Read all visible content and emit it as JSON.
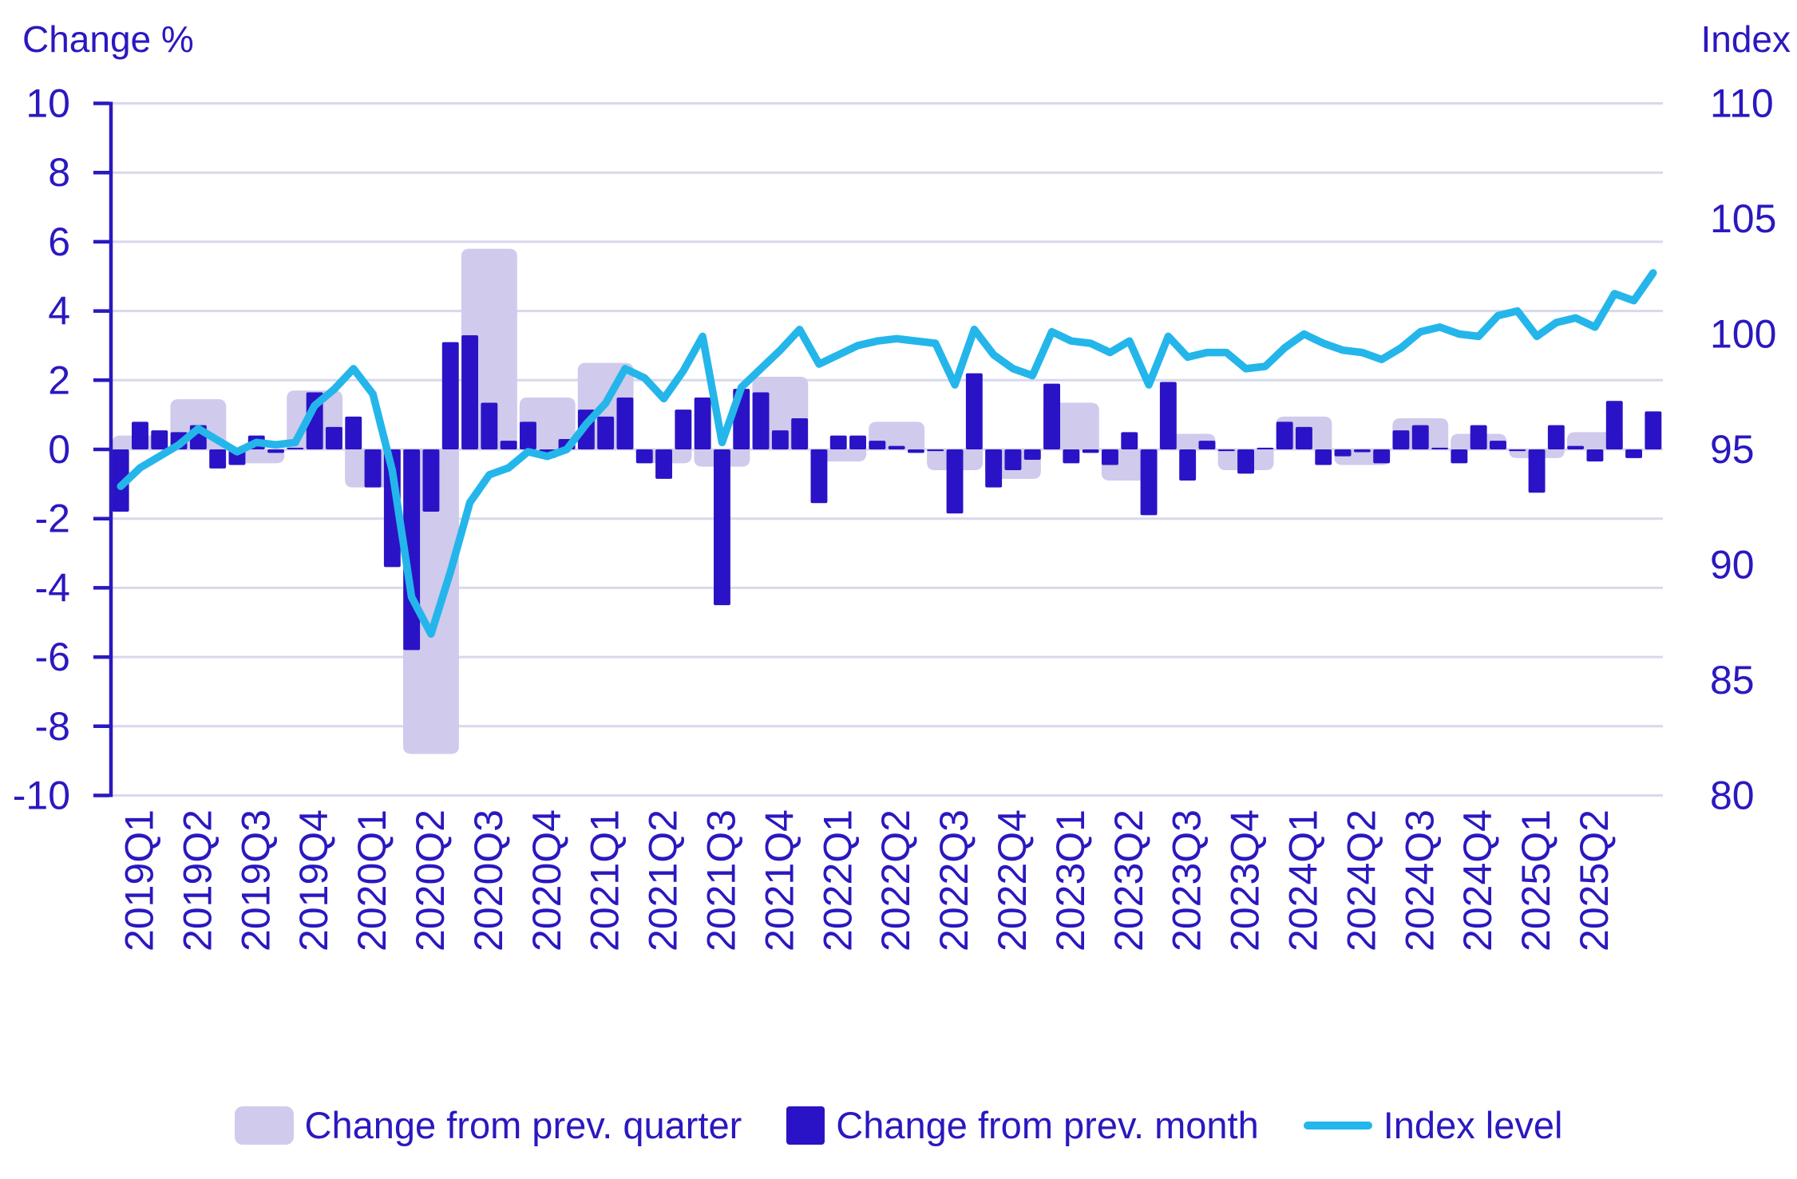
{
  "titles": {
    "left_axis_title": "Change %",
    "right_axis_title": "Index"
  },
  "legend": {
    "quarter_label": "Change from prev. quarter",
    "month_label": "Change from prev. month",
    "index_label": "Index level"
  },
  "colors": {
    "quarter_bar": "#d0caec",
    "month_bar": "#2a13c6",
    "index_line": "#24b6ea",
    "text": "#2a18c0",
    "grid": "#d8d8ee"
  },
  "chart_data": {
    "type": "combo",
    "left_axis": {
      "title": "Change %",
      "min": -10,
      "max": 10,
      "tick_labels": [
        "10",
        "8",
        "6",
        "4",
        "2",
        "0",
        "-2",
        "-4",
        "-6",
        "-8",
        "-10"
      ],
      "tick_values": [
        10,
        8,
        6,
        4,
        2,
        0,
        -2,
        -4,
        -6,
        -8,
        -10
      ],
      "grid": true
    },
    "right_axis": {
      "title": "Index",
      "min": 80,
      "max": 110,
      "tick_labels": [
        "110",
        "105",
        "100",
        "95",
        "90",
        "85",
        "80"
      ],
      "tick_values": [
        110,
        105,
        100,
        95,
        90,
        85,
        80
      ]
    },
    "x_labels": [
      "2019Q1",
      "2019Q2",
      "2019Q3",
      "2019Q4",
      "2020Q1",
      "2020Q2",
      "2020Q3",
      "2020Q4",
      "2021Q1",
      "2021Q2",
      "2021Q3",
      "2021Q4",
      "2022Q1",
      "2022Q2",
      "2022Q3",
      "2022Q4",
      "2023Q1",
      "2023Q2",
      "2023Q3",
      "2023Q4",
      "2024Q1",
      "2024Q2",
      "2024Q3",
      "2024Q4",
      "2025Q1",
      "2025Q2"
    ],
    "months_per_quarter": 3,
    "legend_position": "bottom",
    "series": [
      {
        "name": "Change from prev. quarter",
        "type": "bar",
        "period": "quarter",
        "axis": "left",
        "values": [
          0.4,
          1.45,
          -0.4,
          1.7,
          -1.1,
          -8.8,
          5.8,
          1.5,
          2.5,
          -0.4,
          -0.5,
          2.1,
          -0.35,
          0.8,
          -0.6,
          -0.85,
          1.35,
          -0.9,
          0.45,
          -0.6,
          0.95,
          -0.45,
          0.9,
          0.45,
          -0.25,
          0.5
        ]
      },
      {
        "name": "Change from prev. month",
        "type": "bar",
        "period": "month",
        "axis": "left",
        "values": [
          -1.8,
          0.8,
          0.55,
          0.5,
          0.7,
          -0.55,
          -0.45,
          0.4,
          -0.1,
          0.05,
          1.65,
          0.65,
          0.95,
          -1.1,
          -3.4,
          -5.8,
          -1.8,
          3.1,
          3.3,
          1.35,
          0.25,
          0.8,
          -0.25,
          0.3,
          1.15,
          0.95,
          1.5,
          -0.4,
          -0.85,
          1.15,
          1.5,
          -4.5,
          1.75,
          1.65,
          0.55,
          0.9,
          -1.55,
          0.4,
          0.4,
          0.25,
          0.1,
          -0.1,
          -0.05,
          -1.85,
          2.2,
          -1.1,
          -0.6,
          -0.3,
          1.9,
          -0.4,
          -0.1,
          -0.45,
          0.5,
          -1.9,
          1.95,
          -0.9,
          0.25,
          -0.05,
          -0.7,
          0.05,
          0.8,
          0.65,
          -0.45,
          -0.2,
          -0.08,
          -0.4,
          0.55,
          0.7,
          0.05,
          -0.4,
          0.7,
          0.25,
          -0.05,
          -1.25,
          0.7,
          0.1,
          -0.35,
          1.4,
          -0.25,
          1.1
        ]
      },
      {
        "name": "Index level",
        "type": "line",
        "period": "month",
        "axis": "right",
        "values": [
          93.4,
          94.2,
          94.7,
          95.2,
          95.9,
          95.4,
          94.9,
          95.3,
          95.2,
          95.3,
          96.9,
          97.6,
          98.5,
          97.4,
          94.1,
          88.6,
          87.0,
          89.7,
          92.7,
          93.9,
          94.2,
          94.9,
          94.7,
          95.0,
          96.1,
          97.0,
          98.5,
          98.1,
          97.2,
          98.4,
          99.9,
          95.3,
          97.7,
          98.5,
          99.3,
          100.2,
          98.7,
          99.1,
          99.5,
          99.7,
          99.8,
          99.7,
          99.6,
          97.8,
          100.2,
          99.1,
          98.5,
          98.2,
          100.1,
          99.7,
          99.6,
          99.2,
          99.7,
          97.8,
          99.9,
          99.0,
          99.2,
          99.2,
          98.5,
          98.6,
          99.4,
          100.0,
          99.6,
          99.3,
          99.2,
          98.9,
          99.4,
          100.1,
          100.3,
          100.0,
          99.9,
          100.8,
          101.0,
          99.9,
          100.5,
          100.7,
          100.3,
          101.75,
          101.45,
          102.65
        ]
      }
    ]
  }
}
